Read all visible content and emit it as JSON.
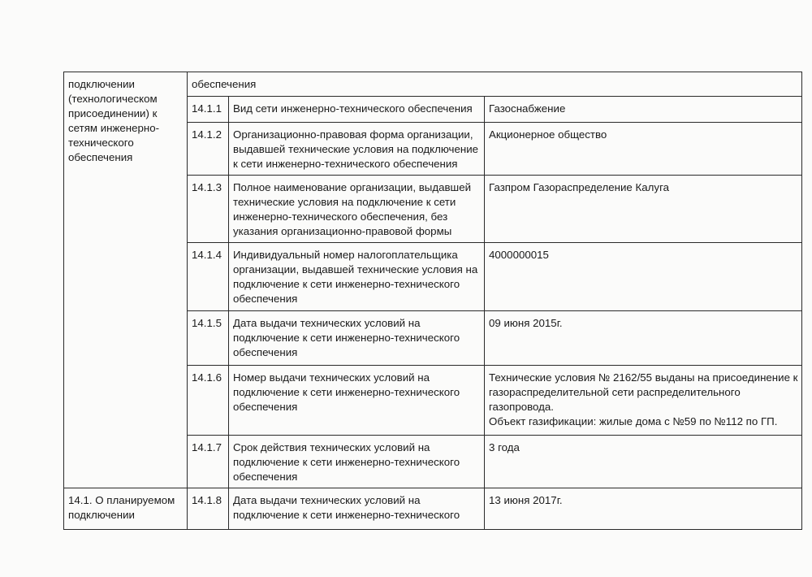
{
  "table": {
    "intro_lines": [
      "подключении",
      "(технологическом",
      "присоединении) к",
      "сетям инженерно-",
      "технического",
      "обеспечения"
    ],
    "continued_cell": "обеспечения",
    "rows": [
      {
        "number": "14.1.1",
        "label": [
          "Вид сети инженерно-технического обеспечения"
        ],
        "value": [
          "Газоснабжение"
        ]
      },
      {
        "number": "14.1.2",
        "label": [
          "Организационно-правовая форма организации,",
          "выдавшей технические условия на подключение",
          "к сети инженерно-технического обеспечения"
        ],
        "value": [
          "Акционерное общество"
        ]
      },
      {
        "number": "14.1.3",
        "label": [
          "Полное наименование организации, выдавшей",
          "технические условия на подключение к сети",
          "инженерно-технического обеспечения, без",
          "указания организационно-правовой формы"
        ],
        "value": [
          "Газпром Газораспределение Калуга"
        ]
      },
      {
        "number": "14.1.4",
        "label": [
          "Индивидуальный номер налогоплательщика",
          "организации, выдавшей технические условия на",
          "подключение к сети инженерно-технического",
          "обеспечения"
        ],
        "value": [
          "4000000015"
        ]
      },
      {
        "number": "14.1.5",
        "label": [
          "Дата выдачи технических условий на",
          "подключение к сети инженерно-технического",
          "обеспечения"
        ],
        "value": [
          "09 июня 2015г."
        ]
      },
      {
        "number": "14.1.6",
        "label": [
          "Номер выдачи технических условий на",
          "подключение к сети инженерно-технического",
          "обеспечения"
        ],
        "value": [
          "Технические условия № 2162/55 выданы на присоединение к",
          "газораспределительной сети распределительного",
          "газопровода.",
          "Объект газификации: жилые дома с №59 по №112 по ГП."
        ]
      },
      {
        "number": "14.1.7",
        "label": [
          "Срок действия технических условий на",
          "подключение к сети инженерно-технического",
          "обеспечения"
        ],
        "value": [
          "3 года"
        ]
      },
      {
        "number": "14.1.8",
        "label": [
          "Дата выдачи технических условий на",
          "подключение к сети инженерно-технического"
        ],
        "value": [
          "13 июня 2017г."
        ]
      }
    ],
    "section_title": [
      "14.1. О планируемом",
      "подключении"
    ]
  }
}
